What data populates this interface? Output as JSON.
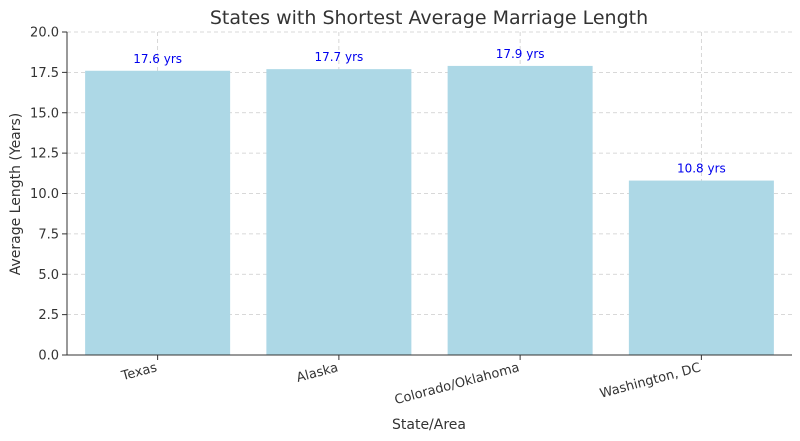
{
  "chart_data": {
    "type": "bar",
    "title": "States with Shortest Average Marriage Length",
    "xlabel": "State/Area",
    "ylabel": "Average Length (Years)",
    "categories": [
      "Texas",
      "Alaska",
      "Colorado/Oklahoma",
      "Washington, DC"
    ],
    "values": [
      17.6,
      17.7,
      17.9,
      10.8
    ],
    "data_labels": [
      "17.6 yrs",
      "17.7 yrs",
      "17.9 yrs",
      "10.8 yrs"
    ],
    "ylim": [
      0,
      20
    ],
    "yticks": [
      0,
      2.5,
      5,
      7.5,
      10,
      12.5,
      15,
      17.5,
      20
    ],
    "ytick_labels": [
      "0.0",
      "2.5",
      "5.0",
      "7.5",
      "10.0",
      "12.5",
      "15.0",
      "17.5",
      "20.0"
    ],
    "grid": true,
    "bar_color": "#add8e6",
    "label_color": "#0000ee"
  }
}
